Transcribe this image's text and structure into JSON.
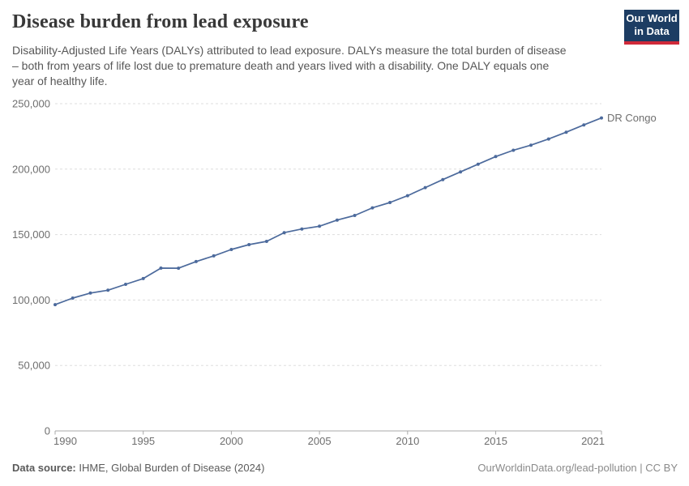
{
  "header": {
    "title": "Disease burden from lead exposure",
    "subtitle_lines": [
      "Disability-Adjusted Life Years (DALYs) attributed to lead exposure. DALYs measure the total burden of disease",
      "– both from years of life lost due to premature death and years lived with a disability. One DALY equals one",
      "year of healthy life."
    ],
    "logo": {
      "line1": "Our World",
      "line2": "in Data"
    }
  },
  "chart_data": {
    "type": "line",
    "title": "Disease burden from lead exposure",
    "entity_label": "DR Congo",
    "x": [
      1990,
      1991,
      1992,
      1993,
      1994,
      1995,
      1996,
      1997,
      1998,
      1999,
      2000,
      2001,
      2002,
      2003,
      2004,
      2005,
      2006,
      2007,
      2008,
      2009,
      2010,
      2011,
      2012,
      2013,
      2014,
      2015,
      2016,
      2017,
      2018,
      2019,
      2020,
      2021
    ],
    "values": [
      96500,
      101500,
      105300,
      107500,
      112000,
      116400,
      124400,
      124300,
      129400,
      133700,
      138600,
      142300,
      144800,
      151500,
      154300,
      156400,
      161100,
      164600,
      170400,
      174500,
      179700,
      185900,
      192000,
      197900,
      203800,
      209600,
      214400,
      218300,
      223000,
      228200,
      233800,
      239100
    ],
    "xlim": [
      1990,
      2021
    ],
    "ylim": [
      0,
      250000
    ],
    "xticks": [
      1990,
      1995,
      2000,
      2005,
      2010,
      2015,
      2021
    ],
    "yticks": [
      0,
      50000,
      100000,
      150000,
      200000,
      250000
    ],
    "grid": "horizontal-dashed",
    "legend_position": "end-of-line",
    "line_color": "#4C6A9C",
    "ylabel": "",
    "xlabel": ""
  },
  "footer": {
    "source_label": "Data source:",
    "source_text": " IHME, Global Burden of Disease (2024)",
    "credit": "OurWorldinData.org/lead-pollution | CC BY"
  },
  "colors": {
    "accent_blue": "#4C6A9C",
    "logo_navy": "#1d3d63",
    "logo_red": "#d02a3a",
    "gridline": "#dddddd",
    "axis": "#a8a8a8"
  }
}
